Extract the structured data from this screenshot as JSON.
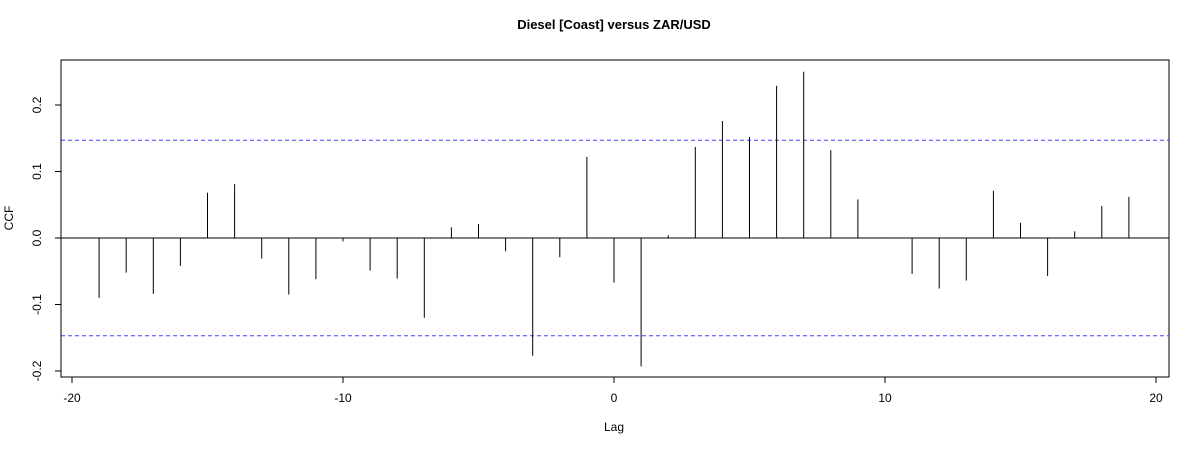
{
  "chart_data": {
    "type": "bar",
    "title": "Diesel [Coast] versus ZAR/USD",
    "xlabel": "Lag",
    "ylabel": "CCF",
    "xlim": [
      -20,
      20
    ],
    "ylim": [
      -0.2,
      0.25
    ],
    "x_ticks": [
      -20,
      -10,
      0,
      10,
      20
    ],
    "y_ticks": [
      -0.2,
      -0.1,
      0.0,
      0.1,
      0.2
    ],
    "x_tick_labels": [
      "-20",
      "-10",
      "0",
      "10",
      "20"
    ],
    "y_tick_labels": [
      "-0.2",
      "-0.1",
      "0.0",
      "0.1",
      "0.2"
    ],
    "confidence_bound": 0.147,
    "confidence_color": "#4040ff",
    "bar_color": "#000000",
    "lags": [
      -19,
      -18,
      -17,
      -16,
      -15,
      -14,
      -13,
      -12,
      -11,
      -10,
      -9,
      -8,
      -7,
      -6,
      -5,
      -4,
      -3,
      -2,
      -1,
      0,
      1,
      2,
      3,
      4,
      5,
      6,
      7,
      8,
      9,
      10,
      11,
      12,
      13,
      14,
      15,
      16,
      17,
      18,
      19
    ],
    "values": [
      -0.09,
      -0.052,
      -0.084,
      -0.042,
      0.068,
      0.081,
      -0.031,
      -0.085,
      -0.062,
      -0.005,
      -0.049,
      -0.061,
      -0.12,
      0.016,
      0.021,
      -0.02,
      -0.177,
      -0.029,
      0.122,
      -0.067,
      -0.193,
      0.004,
      0.137,
      0.176,
      0.152,
      0.229,
      0.25,
      0.132,
      0.058,
      0.001,
      -0.054,
      -0.076,
      -0.064,
      0.071,
      0.023,
      -0.057,
      0.01,
      0.048,
      0.062
    ]
  }
}
